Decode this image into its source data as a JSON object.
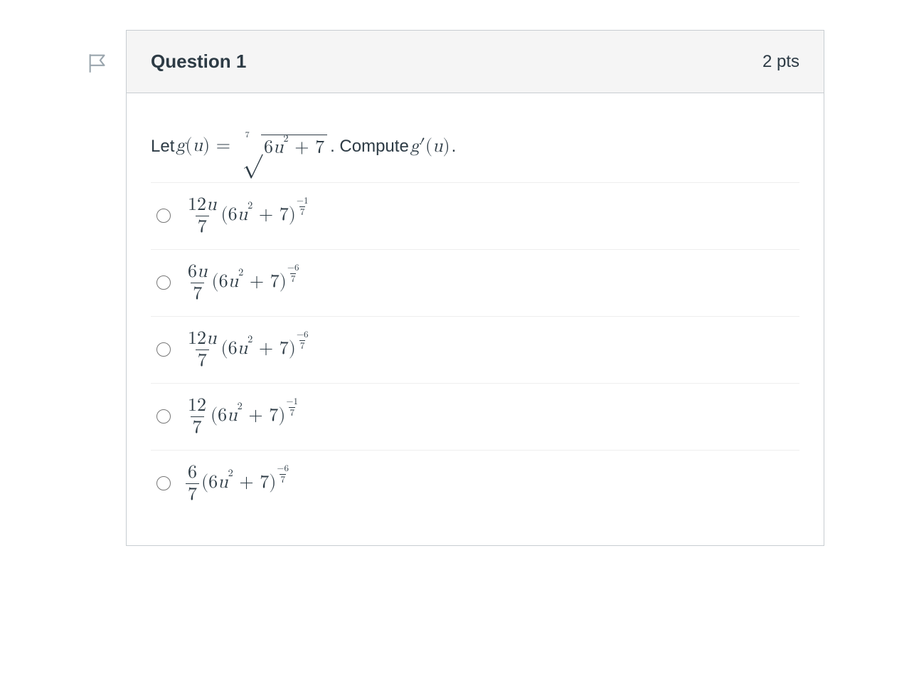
{
  "colors": {
    "border": "#c7cdd1",
    "headerBg": "#f5f5f5",
    "text": "#2d3b45",
    "divider": "#eeeeee",
    "flagStroke": "#9aa5ad"
  },
  "flagIcon": {
    "name": "flag-icon"
  },
  "header": {
    "title": "Question 1",
    "points": "2 pts"
  },
  "prompt": {
    "let": "Let ",
    "func": "g",
    "var": "u",
    "rootIndex": "7",
    "radicand_coef": "6",
    "radicand_var": "u",
    "radicand_exp": "2",
    "radicand_plus": " + 7",
    "compute": ". Compute ",
    "gprime": "g′",
    "trail": "."
  },
  "options": [
    {
      "numTop": "12",
      "numHasU": true,
      "numBot": "7",
      "baseCoef": "6",
      "baseVar": "u",
      "baseExp": "2",
      "basePlus": " + 7",
      "expTop": "−1",
      "expBot": "7"
    },
    {
      "numTop": "6",
      "numHasU": true,
      "numBot": "7",
      "baseCoef": "6",
      "baseVar": "u",
      "baseExp": "2",
      "basePlus": " + 7",
      "expTop": "−6",
      "expBot": "7"
    },
    {
      "numTop": "12",
      "numHasU": true,
      "numBot": "7",
      "baseCoef": "6",
      "baseVar": "u",
      "baseExp": "2",
      "basePlus": " + 7",
      "expTop": "−6",
      "expBot": "7"
    },
    {
      "numTop": "12",
      "numHasU": false,
      "numBot": "7",
      "baseCoef": "6",
      "baseVar": "u",
      "baseExp": "2",
      "basePlus": " + 7",
      "expTop": "−1",
      "expBot": "7"
    },
    {
      "numTop": "6",
      "numHasU": false,
      "numBot": "7",
      "baseCoef": "6",
      "baseVar": "u",
      "baseExp": "2",
      "basePlus": " + 7",
      "expTop": "−6",
      "expBot": "7"
    }
  ]
}
